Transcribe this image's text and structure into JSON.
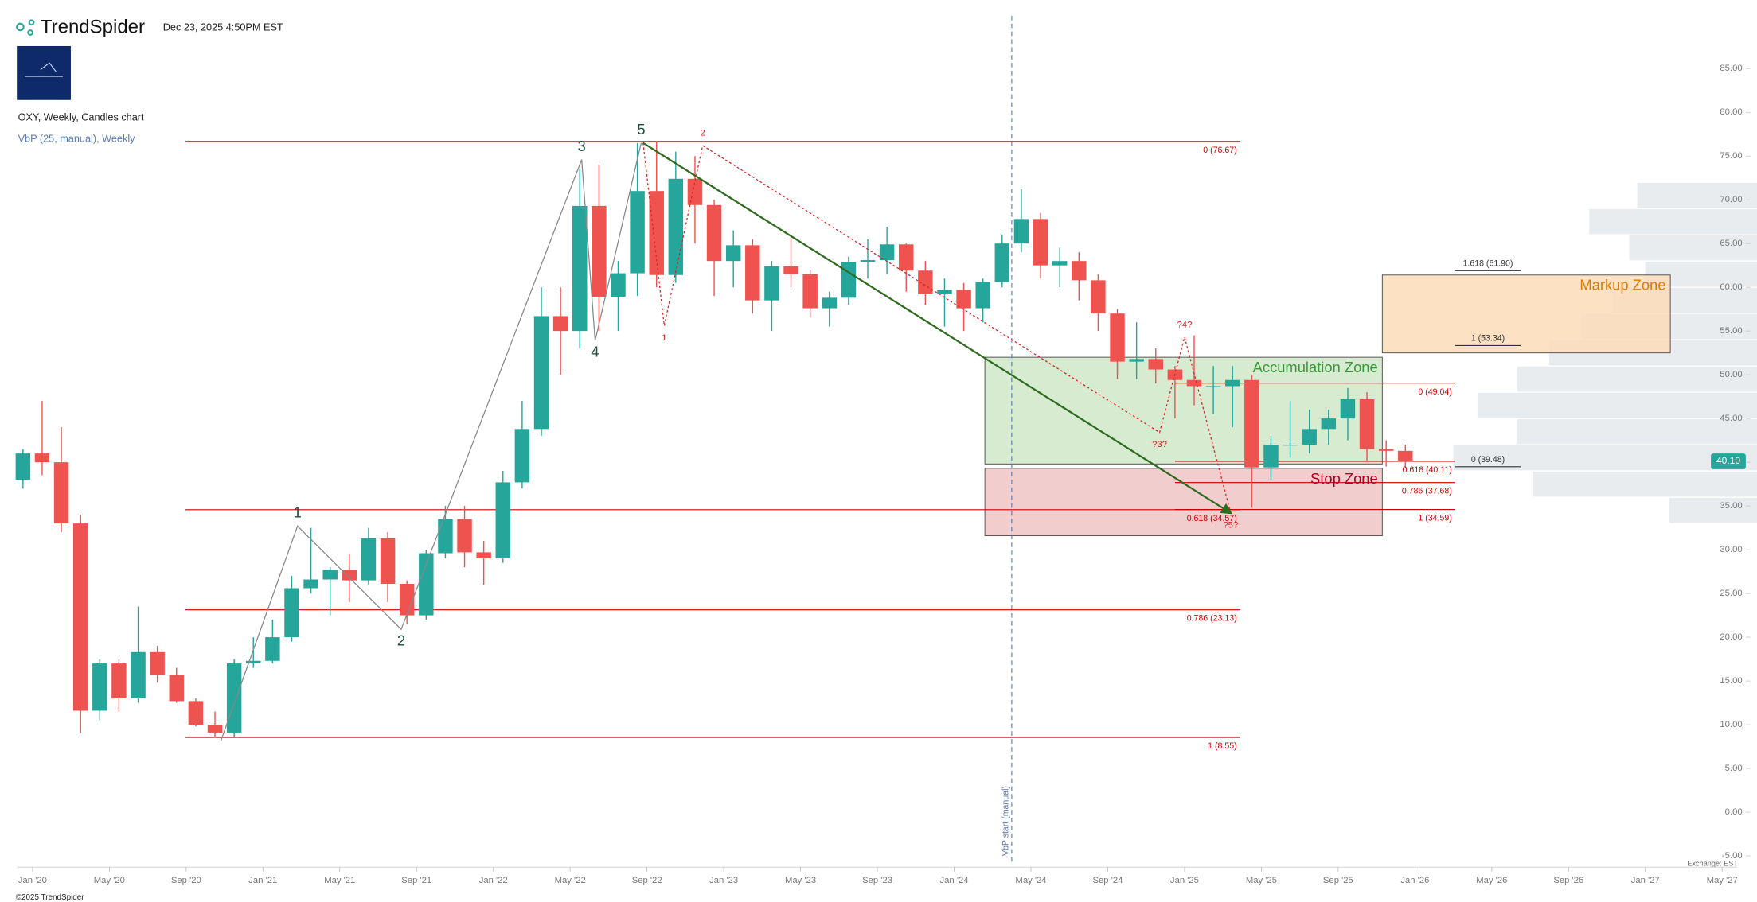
{
  "header": {
    "brand": "TrendSpider",
    "timestamp": "Dec 23, 2025 4:50PM EST",
    "symbol": "OXY, Weekly, Candles chart",
    "indicator": "VbP (25, manual), Weekly",
    "copyright": "©2025 TrendSpider",
    "exchange": "Exchange: EST"
  },
  "chart_data": {
    "type": "candlestick",
    "x": [
      -1,
      0,
      1,
      2,
      3,
      4,
      5,
      6,
      7,
      8,
      9,
      10,
      11,
      12,
      13,
      14,
      15,
      16,
      17,
      18,
      19,
      20,
      21,
      22,
      23,
      24,
      25,
      26,
      27,
      28,
      29,
      30,
      31,
      32,
      33,
      34,
      35,
      36,
      37,
      38,
      39,
      40,
      41,
      42,
      43,
      44,
      45,
      46,
      47,
      48,
      49,
      50,
      51,
      52,
      53,
      54,
      55,
      56,
      57,
      58,
      59,
      60,
      61,
      62,
      63,
      64,
      65,
      66,
      67,
      68,
      69,
      70,
      71
    ],
    "open": [
      38,
      41,
      40,
      33,
      11.6,
      17,
      13,
      18.3,
      15.7,
      12.7,
      10,
      9.1,
      17,
      17.3,
      20,
      25.6,
      26.6,
      27.7,
      26.5,
      31.3,
      26.1,
      22.5,
      29.6,
      33.5,
      29.7,
      29,
      37.7,
      43.8,
      56.7,
      55,
      69.3,
      58.9,
      61.6,
      71,
      61.4,
      72.4,
      69.4,
      63,
      64.8,
      58.5,
      62.4,
      61.5,
      57.6,
      58.8,
      62.9,
      63.1,
      64.9,
      61.9,
      59.2,
      59.7,
      57.6,
      60.6,
      65,
      67.8,
      62.5,
      63,
      60.8,
      57,
      51.5,
      51.8,
      50.6,
      49.4,
      48.7,
      48.7,
      49.4,
      39.4,
      42,
      42,
      43.8,
      45,
      47.2,
      41.5,
      41.3
    ],
    "high": [
      41.5,
      47,
      44,
      34,
      17.5,
      17.5,
      23.5,
      19,
      16.5,
      13,
      11.5,
      17.5,
      20,
      22,
      27,
      32.5,
      28,
      29.5,
      32.5,
      32,
      26.5,
      30,
      35,
      35,
      31,
      39,
      47,
      60,
      60,
      73.5,
      74,
      63,
      76.5,
      76.7,
      75.5,
      75,
      70,
      66.5,
      65.5,
      63,
      66,
      62,
      59.5,
      63.5,
      65.5,
      66.9,
      65,
      63,
      61,
      60.5,
      61,
      66,
      71.2,
      68.5,
      64.5,
      64,
      61.5,
      57.5,
      56,
      53,
      51,
      54.5,
      51,
      51,
      50,
      43,
      47,
      46,
      46,
      48.5,
      48,
      42.5,
      42
    ],
    "low": [
      37,
      38.5,
      32,
      9,
      10.5,
      11.5,
      12.5,
      14.8,
      12.5,
      9.8,
      8.5,
      8.6,
      16.5,
      17,
      19.5,
      25,
      22.5,
      24,
      26,
      24,
      21.5,
      22,
      29,
      28,
      26,
      28.5,
      37,
      43,
      50,
      53,
      55,
      55,
      59,
      60,
      60.5,
      65,
      59,
      60,
      57,
      55,
      60,
      56.5,
      55.5,
      58,
      61,
      61.5,
      59.5,
      58,
      55.5,
      55,
      56,
      60,
      64,
      61,
      60,
      58.5,
      55,
      49.5,
      49.5,
      49,
      45,
      46.5,
      45.5,
      44,
      34.8,
      38,
      40.5,
      41,
      42,
      42.5,
      40,
      39.5,
      39.3
    ],
    "close": [
      41,
      40,
      33,
      11.6,
      17,
      13,
      18.3,
      15.7,
      12.7,
      10,
      9.1,
      17,
      17.3,
      20,
      25.6,
      26.6,
      27.7,
      26.5,
      31.3,
      26.1,
      22.5,
      29.6,
      33.5,
      29.7,
      29,
      37.7,
      43.8,
      56.7,
      55,
      69.3,
      58.9,
      61.6,
      71,
      61.4,
      72.4,
      69.4,
      63,
      64.8,
      58.5,
      62.4,
      61.5,
      57.6,
      58.8,
      62.9,
      63.1,
      64.9,
      61.9,
      59.2,
      59.7,
      57.6,
      60.6,
      65,
      67.8,
      62.5,
      63,
      60.8,
      57,
      51.5,
      51.8,
      50.6,
      49.4,
      48.7,
      48.7,
      49.4,
      39.4,
      42,
      42,
      43.8,
      45,
      47.2,
      41.5,
      41.3,
      40.1
    ],
    "up_color": "#26a69a",
    "down_color": "#ef5350",
    "xlim": [
      -0.8,
      88
    ],
    "xticks": [
      {
        "value": 0,
        "label": "Jan '20"
      },
      {
        "value": 4,
        "label": "May '20"
      },
      {
        "value": 8,
        "label": "Sep '20"
      },
      {
        "value": 12,
        "label": "Jan '21"
      },
      {
        "value": 16,
        "label": "May '21"
      },
      {
        "value": 20,
        "label": "Sep '21"
      },
      {
        "value": 24,
        "label": "Jan '22"
      },
      {
        "value": 28,
        "label": "May '22"
      },
      {
        "value": 32,
        "label": "Sep '22"
      },
      {
        "value": 36,
        "label": "Jan '23"
      },
      {
        "value": 40,
        "label": "May '23"
      },
      {
        "value": 44,
        "label": "Sep '23"
      },
      {
        "value": 48,
        "label": "Jan '24"
      },
      {
        "value": 52,
        "label": "May '24"
      },
      {
        "value": 56,
        "label": "Sep '24"
      },
      {
        "value": 60,
        "label": "Jan '25"
      },
      {
        "value": 64,
        "label": "May '25"
      },
      {
        "value": 68,
        "label": "Sep '25"
      },
      {
        "value": 72,
        "label": "Jan '26"
      },
      {
        "value": 76,
        "label": "May '26"
      },
      {
        "value": 80,
        "label": "Sep '26"
      },
      {
        "value": 84,
        "label": "Jan '27"
      },
      {
        "value": 88,
        "label": "May '27"
      }
    ],
    "ylim": [
      -5,
      85
    ],
    "yticks": [
      {
        "value": -5,
        "label": "-5.00"
      },
      {
        "value": 0,
        "label": "0.00"
      },
      {
        "value": 5,
        "label": "5.00"
      },
      {
        "value": 10,
        "label": "10.00"
      },
      {
        "value": 15,
        "label": "15.00"
      },
      {
        "value": 20,
        "label": "20.00"
      },
      {
        "value": 25,
        "label": "25.00"
      },
      {
        "value": 30,
        "label": "30.00"
      },
      {
        "value": 35,
        "label": "35.00"
      },
      {
        "value": 40,
        "label": "40.00"
      },
      {
        "value": 45,
        "label": "45.00"
      },
      {
        "value": 50,
        "label": "50.00"
      },
      {
        "value": 55,
        "label": "55.00"
      },
      {
        "value": 60,
        "label": "60.00"
      },
      {
        "value": 65,
        "label": "65.00"
      },
      {
        "value": 70,
        "label": "70.00"
      },
      {
        "value": 75,
        "label": "75.00"
      },
      {
        "value": 80,
        "label": "80.00"
      },
      {
        "value": 85,
        "label": "85.00"
      }
    ],
    "last_price": {
      "value": 40.1,
      "label": "40.10",
      "color": "#26a69a"
    },
    "volume_profile": {
      "bins": [
        33,
        36,
        39,
        42,
        45,
        48,
        51,
        54,
        57,
        60,
        63,
        66,
        69,
        72
      ],
      "volumes": [
        55,
        140,
        190,
        150,
        175,
        150,
        130,
        110,
        90,
        70,
        80,
        105,
        75
      ],
      "color": "#e8ecef"
    },
    "fib_sets": [
      {
        "color": "#cc0000",
        "x": [
          7.96,
          62.9
        ],
        "levels": [
          {
            "value": 76.67,
            "label": "0 (76.67)"
          },
          {
            "value": 34.57,
            "label": "0.618 (34.57)"
          },
          {
            "value": 23.13,
            "label": "0.786 (23.13)"
          },
          {
            "value": 8.55,
            "label": "1 (8.55)"
          }
        ]
      },
      {
        "color": "#cc0000",
        "x": [
          59.5,
          74.1
        ],
        "levels": [
          {
            "value": 49.04,
            "label": "0 (49.04)"
          },
          {
            "value": 40.11,
            "label": "0.618 (40.11)"
          },
          {
            "value": 37.68,
            "label": "0.786 (37.68)"
          },
          {
            "value": 34.59,
            "label": "1 (34.59)"
          }
        ]
      },
      {
        "color": "#333333",
        "x": [
          74.1,
          77.5
        ],
        "levels": [
          {
            "value": 39.48,
            "label": "0 (39.48)"
          },
          {
            "value": 53.34,
            "label": "1 (53.34)"
          },
          {
            "value": 61.9,
            "label": "1.618 (61.90)"
          }
        ]
      }
    ],
    "zones": [
      {
        "label": "Markup Zone",
        "x": [
          70.3,
          85.3
        ],
        "y": [
          52.5,
          61.4
        ],
        "fill": "#fcdcb8",
        "text_color": "#e07b00"
      },
      {
        "label": "Accumulation Zone",
        "x": [
          49.6,
          70.3
        ],
        "y": [
          39.8,
          52.0
        ],
        "fill": "#cfe8c8",
        "text_color": "#3a9a3a"
      },
      {
        "label": "Stop Zone",
        "x": [
          49.6,
          70.3
        ],
        "y": [
          31.6,
          39.3
        ],
        "fill": "#efc4c6",
        "text_color": "#b00020"
      }
    ],
    "waves": [
      {
        "color": "#888888",
        "label_color": "#1b4d3e",
        "dotted": false,
        "x": [
          9.8,
          13.8,
          19.2,
          28.6,
          29.3,
          31.7
        ],
        "y": [
          8.1,
          32.7,
          20.9,
          74.6,
          53.9,
          76.5
        ],
        "labels": [
          null,
          "1",
          "2",
          "3",
          "4",
          "5"
        ]
      },
      {
        "color": "#dd2222",
        "label_color": "#dd2222",
        "dotted": true,
        "x": [
          31.8,
          32.9,
          34.9,
          58.7,
          60.0,
          62.4
        ],
        "y": [
          76.5,
          55.6,
          76.2,
          43.4,
          54.3,
          34.2
        ],
        "labels": [
          null,
          "1",
          "2",
          "?3?",
          "?4?",
          "?5?"
        ]
      },
      {
        "color": "#2e6b1f",
        "label_color": "#2e6b1f",
        "dotted": false,
        "arrow": true,
        "x": [
          31.8,
          62.4
        ],
        "y": [
          76.5,
          34.2
        ],
        "labels": [
          null,
          null
        ]
      }
    ],
    "vbp_start": {
      "x": 51,
      "label": "VbP start (manual)"
    }
  }
}
